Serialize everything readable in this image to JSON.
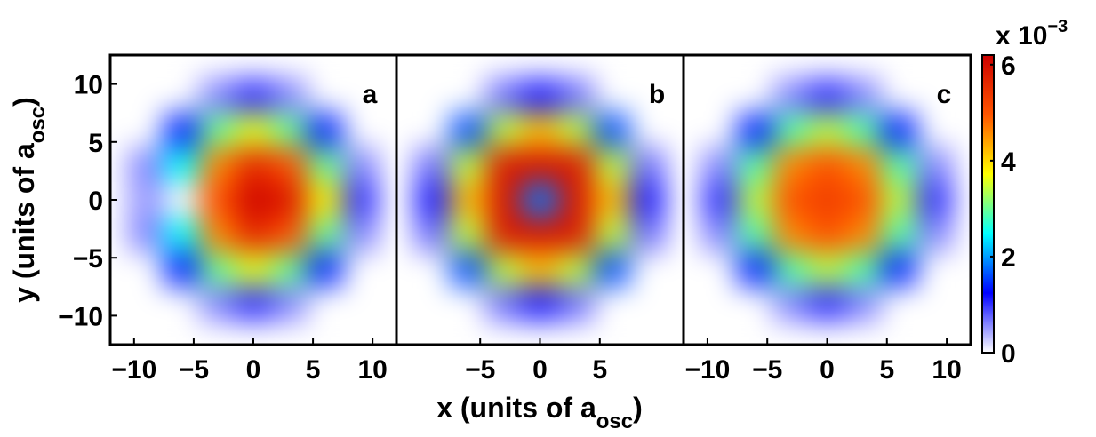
{
  "chart_data": [
    {
      "type": "heatmap",
      "label": "a",
      "x": [
        -12,
        -9,
        -6,
        -3,
        0,
        3,
        6,
        9,
        12
      ],
      "y": [
        12,
        9,
        6,
        3,
        0,
        -3,
        -6,
        -9,
        -12
      ],
      "z": [
        [
          0,
          0,
          0,
          0,
          0,
          0,
          0,
          0,
          0
        ],
        [
          0,
          0,
          0,
          0.6,
          1.0,
          0.6,
          0,
          0,
          0
        ],
        [
          0,
          0,
          1.4,
          3.0,
          3.6,
          3.0,
          1.4,
          0,
          0
        ],
        [
          0,
          0.6,
          2.5,
          4.6,
          5.6,
          5.0,
          3.0,
          0.6,
          0
        ],
        [
          0,
          0.5,
          0,
          5.0,
          6.1,
          5.8,
          3.8,
          1.0,
          0
        ],
        [
          0,
          0.6,
          2.5,
          4.6,
          5.6,
          5.0,
          3.0,
          0.6,
          0
        ],
        [
          0,
          0,
          1.4,
          3.0,
          3.6,
          3.0,
          1.4,
          0,
          0
        ],
        [
          0,
          0,
          0,
          0.6,
          1.0,
          0.6,
          0,
          0,
          0
        ],
        [
          0,
          0,
          0,
          0,
          0,
          0,
          0,
          0,
          0
        ]
      ],
      "xlim": [
        -12,
        12
      ],
      "ylim": [
        -12.5,
        12.5
      ],
      "xticks": [
        {
          "value": -10,
          "label": "−10"
        },
        {
          "value": -5,
          "label": "−5"
        },
        0,
        5,
        10
      ],
      "yticks": [
        {
          "value": -10,
          "label": "−10"
        },
        {
          "value": -5,
          "label": "−5"
        },
        0,
        5,
        10
      ]
    },
    {
      "type": "heatmap",
      "label": "b",
      "x": [
        -12,
        -9,
        -6,
        -3,
        0,
        3,
        6,
        9,
        12
      ],
      "y": [
        12,
        9,
        6,
        3,
        0,
        -3,
        -6,
        -9,
        -12
      ],
      "z": [
        [
          0,
          0,
          0,
          0,
          0,
          0,
          0,
          0,
          0
        ],
        [
          0,
          0,
          0,
          0.7,
          1.1,
          0.7,
          0,
          0,
          0
        ],
        [
          0,
          0,
          1.6,
          3.4,
          4.2,
          3.4,
          1.6,
          0,
          0
        ],
        [
          0,
          0.7,
          3.4,
          5.8,
          5.9,
          5.8,
          3.4,
          0.7,
          0
        ],
        [
          0,
          1.1,
          4.2,
          5.9,
          1.8,
          5.9,
          4.2,
          1.1,
          0
        ],
        [
          0,
          0.7,
          3.4,
          5.8,
          5.9,
          5.8,
          3.4,
          0.7,
          0
        ],
        [
          0,
          0,
          1.6,
          3.4,
          4.2,
          3.4,
          1.6,
          0,
          0
        ],
        [
          0,
          0,
          0,
          0.7,
          1.1,
          0.7,
          0,
          0,
          0
        ],
        [
          0,
          0,
          0,
          0,
          0,
          0,
          0,
          0,
          0
        ]
      ],
      "xlim": [
        -12,
        12
      ],
      "ylim": [
        -12.5,
        12.5
      ],
      "xticks": [
        {
          "value": -5,
          "label": "−5"
        },
        0,
        5
      ]
    },
    {
      "type": "heatmap",
      "label": "c",
      "x": [
        -12,
        -9,
        -6,
        -3,
        0,
        3,
        6,
        9,
        12
      ],
      "y": [
        12,
        9,
        6,
        3,
        0,
        -3,
        -6,
        -9,
        -12
      ],
      "z": [
        [
          0,
          0,
          0,
          0,
          0,
          0,
          0,
          0,
          0
        ],
        [
          0,
          0,
          0,
          0.6,
          1.0,
          0.6,
          0,
          0,
          0
        ],
        [
          0,
          0,
          1.4,
          2.9,
          3.4,
          2.9,
          1.4,
          0,
          0
        ],
        [
          0,
          0.6,
          2.9,
          4.6,
          5.0,
          4.6,
          2.9,
          0.6,
          0
        ],
        [
          0,
          1.0,
          3.4,
          5.0,
          5.3,
          5.0,
          3.4,
          1.0,
          0
        ],
        [
          0,
          0.6,
          2.9,
          4.6,
          5.0,
          4.6,
          2.9,
          0.6,
          0
        ],
        [
          0,
          0,
          1.4,
          2.9,
          3.4,
          2.9,
          1.4,
          0,
          0
        ],
        [
          0,
          0,
          0,
          0.6,
          1.0,
          0.6,
          0,
          0,
          0
        ],
        [
          0,
          0,
          0,
          0,
          0,
          0,
          0,
          0,
          0
        ]
      ],
      "xlim": [
        -12,
        12
      ],
      "ylim": [
        -12.5,
        12.5
      ],
      "xticks": [
        {
          "value": -10,
          "label": "−10"
        },
        {
          "value": -5,
          "label": "−5"
        },
        0,
        5,
        10
      ]
    }
  ],
  "xlabel": [
    "x (units of a",
    "osc",
    ")"
  ],
  "ylabel": [
    "y (units of a",
    "osc",
    ")"
  ],
  "colorbar": {
    "clim": [
      0,
      6.2
    ],
    "ticks": [
      0,
      2,
      4,
      6
    ],
    "exponent": [
      "x 10",
      "−3"
    ],
    "colormap": [
      "#ffffff",
      "#0000ff",
      "#00ffff",
      "#ffff00",
      "#ff5500",
      "#cc0000"
    ]
  }
}
